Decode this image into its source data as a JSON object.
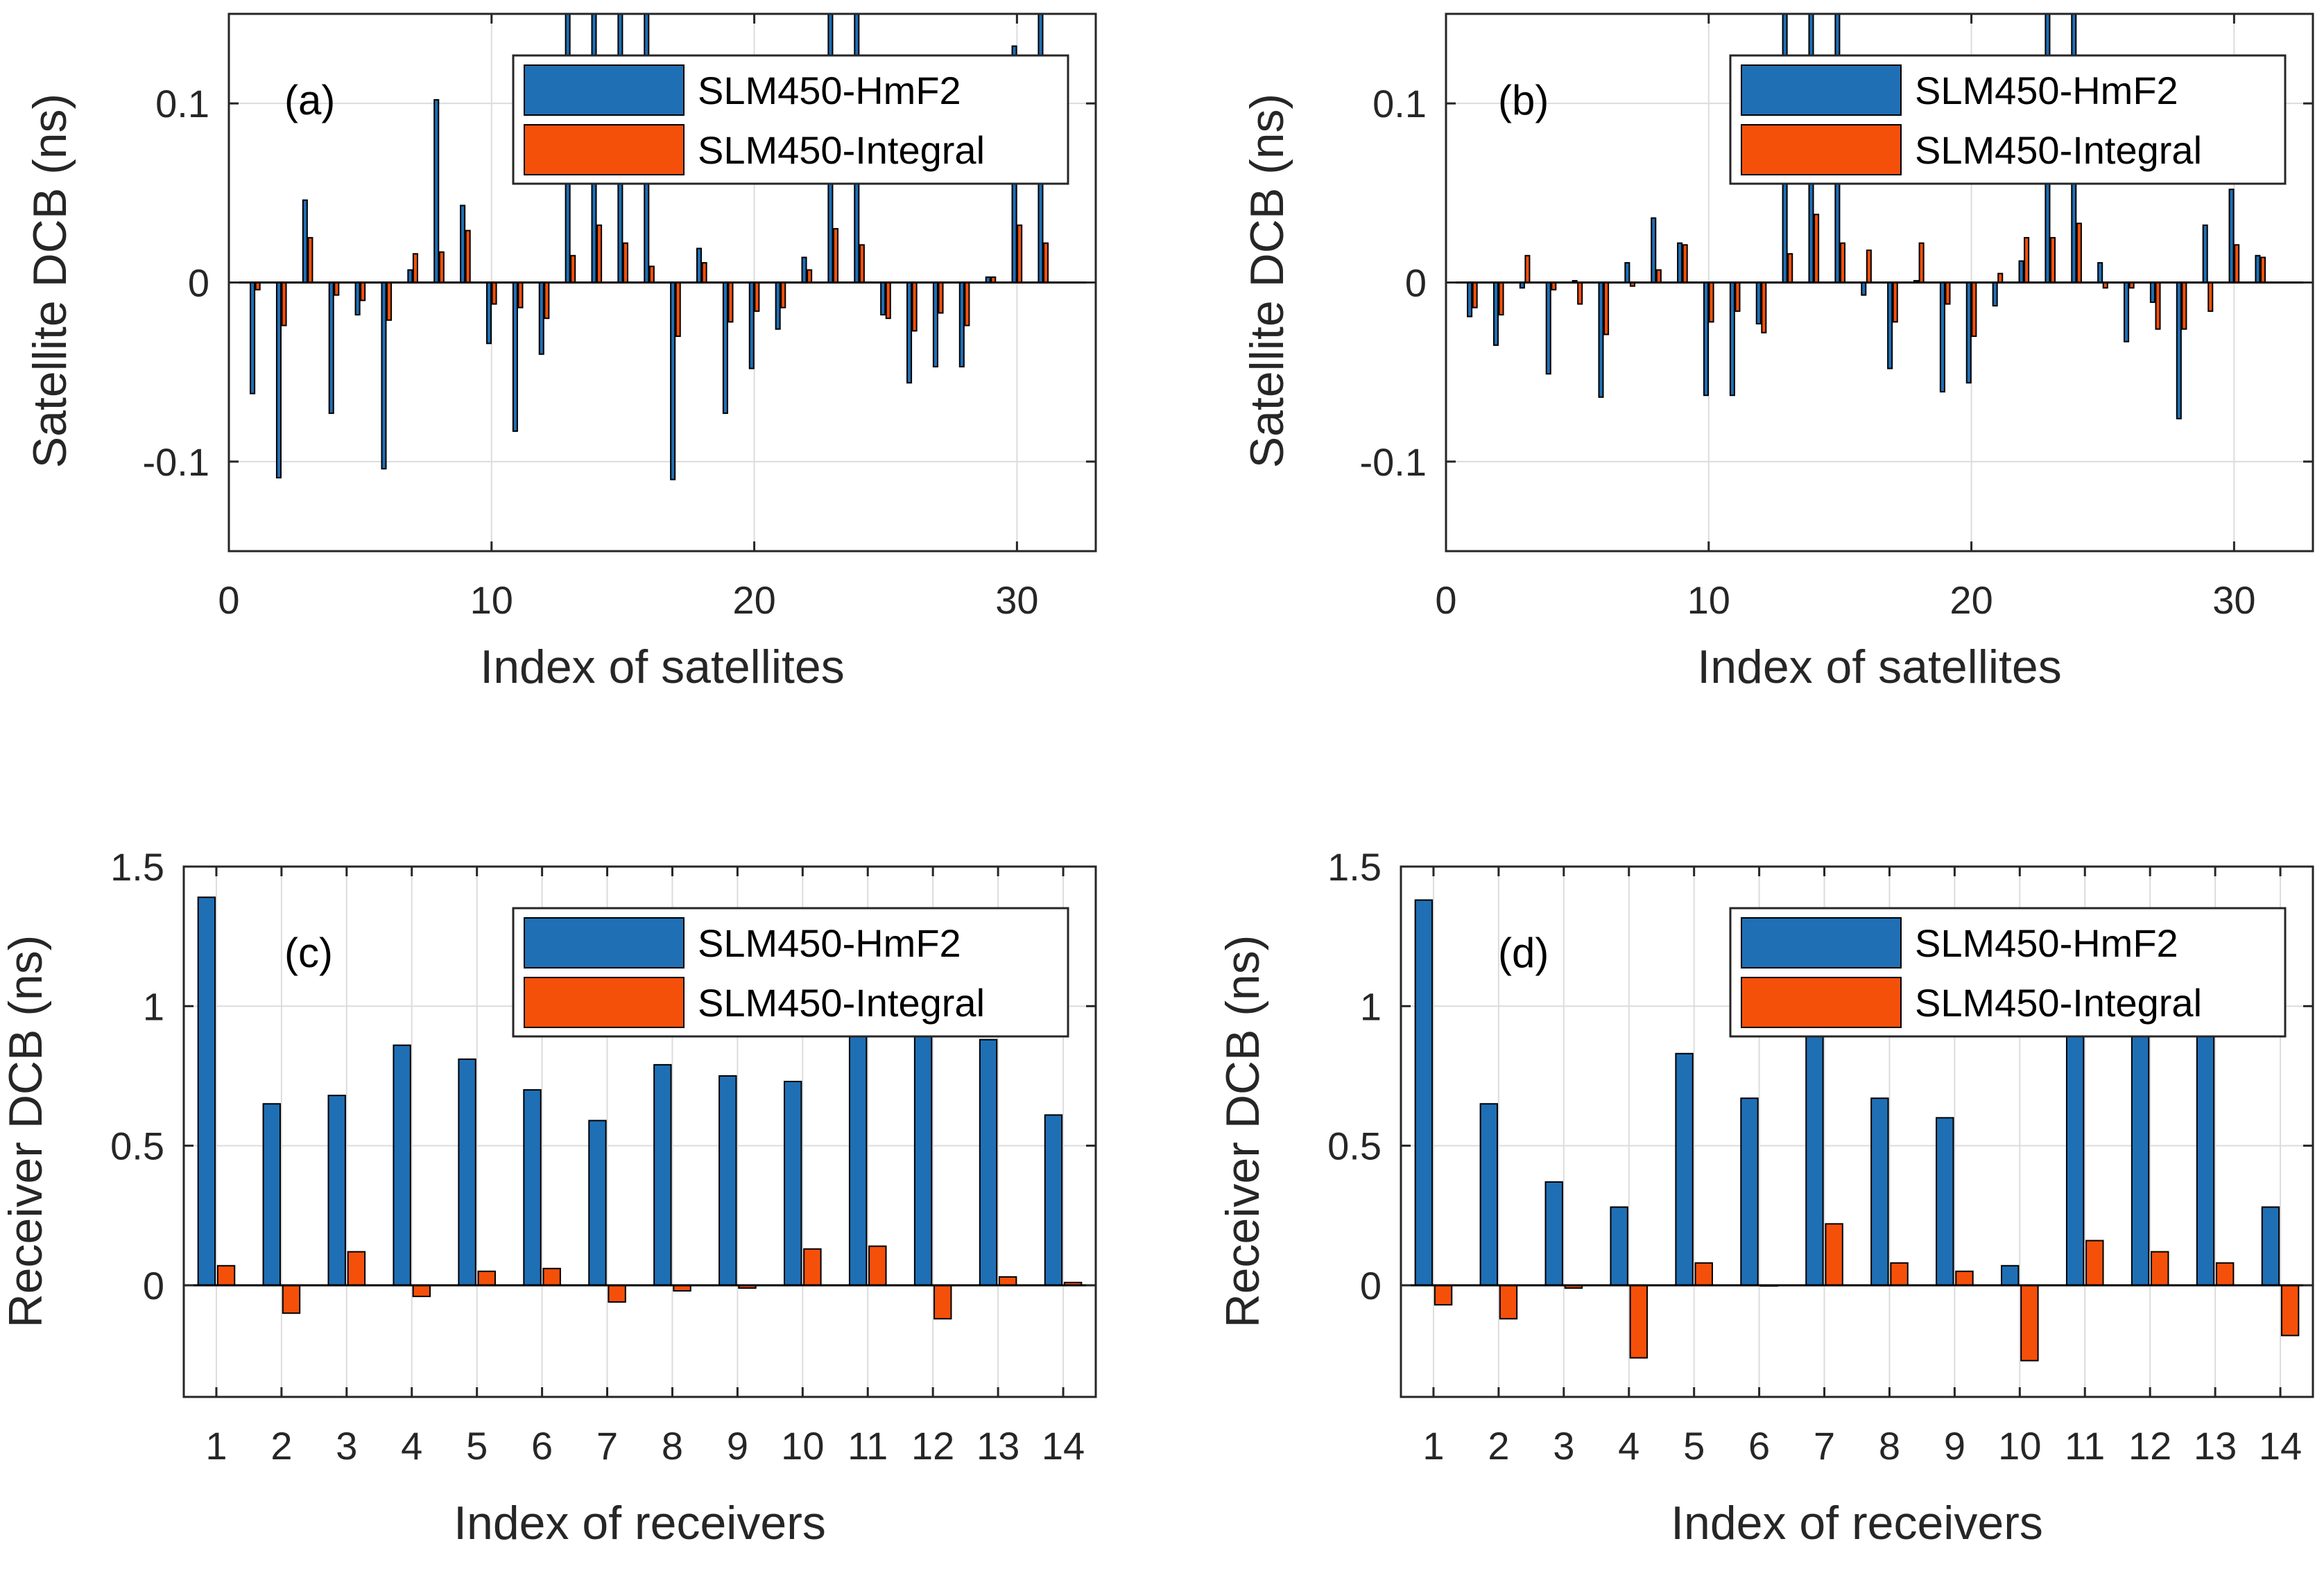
{
  "colors": {
    "hmf2": "#1f6fb5",
    "integral": "#f5500a",
    "axis": "#262626",
    "grid": "#dcdcdc",
    "baseline": "#000000"
  },
  "chart_data": [
    {
      "type": "bar",
      "panel_label": "(a)",
      "xlabel": "Index of satellites",
      "ylabel": "Satellite DCB (ns)",
      "xlim": [
        0,
        33
      ],
      "ylim": [
        -0.15,
        0.15
      ],
      "xticks": [
        0,
        10,
        20,
        30
      ],
      "xtick_labels": [
        "0",
        "10",
        "20",
        "30"
      ],
      "yticks": [
        -0.1,
        0,
        0.1
      ],
      "ytick_labels": [
        "-0.1",
        "0",
        "0.1"
      ],
      "legend": [
        "SLM450-HmF2",
        "SLM450-Integral"
      ],
      "categories": [
        1,
        2,
        3,
        4,
        5,
        6,
        7,
        8,
        9,
        10,
        11,
        12,
        13,
        14,
        15,
        16,
        17,
        18,
        19,
        20,
        21,
        22,
        23,
        24,
        25,
        26,
        27,
        28,
        29,
        30,
        31
      ],
      "series": [
        {
          "name": "SLM450-HmF2",
          "values": [
            -0.062,
            -0.109,
            0.046,
            -0.073,
            -0.018,
            -0.104,
            0.007,
            0.102,
            0.043,
            -0.034,
            -0.083,
            -0.04,
            0.15,
            0.15,
            0.15,
            0.15,
            -0.11,
            0.019,
            -0.073,
            -0.048,
            -0.026,
            0.014,
            0.15,
            0.15,
            -0.018,
            -0.056,
            -0.047,
            -0.047,
            0.003,
            0.132,
            0.15
          ]
        },
        {
          "name": "SLM450-Integral",
          "values": [
            -0.004,
            -0.024,
            0.025,
            -0.007,
            -0.01,
            -0.021,
            0.016,
            0.017,
            0.029,
            -0.012,
            -0.014,
            -0.02,
            0.015,
            0.032,
            0.022,
            0.009,
            -0.03,
            0.011,
            -0.022,
            -0.016,
            -0.014,
            0.007,
            0.03,
            0.021,
            -0.02,
            -0.027,
            -0.017,
            -0.024,
            0.003,
            0.032,
            0.022
          ]
        }
      ]
    },
    {
      "type": "bar",
      "panel_label": "(b)",
      "xlabel": "Index of satellites",
      "ylabel": "Satellite DCB (ns)",
      "xlim": [
        0,
        33
      ],
      "ylim": [
        -0.15,
        0.15
      ],
      "xticks": [
        0,
        10,
        20,
        30
      ],
      "xtick_labels": [
        "0",
        "10",
        "20",
        "30"
      ],
      "yticks": [
        -0.1,
        0,
        0.1
      ],
      "ytick_labels": [
        "-0.1",
        "0",
        "0.1"
      ],
      "legend": [
        "SLM450-HmF2",
        "SLM450-Integral"
      ],
      "categories": [
        1,
        2,
        3,
        4,
        5,
        6,
        7,
        8,
        9,
        10,
        11,
        12,
        13,
        14,
        15,
        16,
        17,
        18,
        19,
        20,
        21,
        22,
        23,
        24,
        25,
        26,
        27,
        28,
        29,
        30,
        31
      ],
      "series": [
        {
          "name": "SLM450-HmF2",
          "values": [
            -0.019,
            -0.035,
            -0.003,
            -0.051,
            0.001,
            -0.064,
            0.011,
            0.036,
            0.022,
            -0.063,
            -0.063,
            -0.023,
            0.15,
            0.15,
            0.15,
            -0.007,
            -0.048,
            0.001,
            -0.061,
            -0.056,
            -0.013,
            0.012,
            0.15,
            0.15,
            0.011,
            -0.033,
            -0.011,
            -0.076,
            0.032,
            0.052,
            0.015
          ]
        },
        {
          "name": "SLM450-Integral",
          "values": [
            -0.014,
            -0.018,
            0.015,
            -0.004,
            -0.012,
            -0.029,
            -0.002,
            0.007,
            0.021,
            -0.022,
            -0.016,
            -0.028,
            0.016,
            0.038,
            0.022,
            0.018,
            -0.022,
            0.022,
            -0.012,
            -0.03,
            0.005,
            0.025,
            0.025,
            0.033,
            -0.003,
            -0.003,
            -0.026,
            -0.026,
            -0.016,
            0.021,
            0.014
          ]
        }
      ]
    },
    {
      "type": "bar",
      "panel_label": "(c)",
      "xlabel": "Index of receivers",
      "ylabel": "Receiver DCB (ns)",
      "xlim": [
        0.5,
        14.5
      ],
      "ylim": [
        -0.4,
        1.5
      ],
      "xticks": [
        1,
        2,
        3,
        4,
        5,
        6,
        7,
        8,
        9,
        10,
        11,
        12,
        13,
        14
      ],
      "xtick_labels": [
        "1",
        "2",
        "3",
        "4",
        "5",
        "6",
        "7",
        "8",
        "9",
        "10",
        "11",
        "12",
        "13",
        "14"
      ],
      "yticks": [
        0,
        0.5,
        1,
        1.5
      ],
      "ytick_labels": [
        "0",
        "0.5",
        "1",
        "1.5"
      ],
      "legend": [
        "SLM450-HmF2",
        "SLM450-Integral"
      ],
      "categories": [
        1,
        2,
        3,
        4,
        5,
        6,
        7,
        8,
        9,
        10,
        11,
        12,
        13,
        14
      ],
      "series": [
        {
          "name": "SLM450-HmF2",
          "values": [
            1.39,
            0.65,
            0.68,
            0.86,
            0.81,
            0.7,
            0.59,
            0.79,
            0.75,
            0.73,
            0.97,
            0.9,
            0.88,
            0.61
          ]
        },
        {
          "name": "SLM450-Integral",
          "values": [
            0.07,
            -0.1,
            0.12,
            -0.04,
            0.05,
            0.06,
            -0.06,
            -0.02,
            -0.01,
            0.13,
            0.14,
            -0.12,
            0.03,
            0.01
          ]
        }
      ]
    },
    {
      "type": "bar",
      "panel_label": "(d)",
      "xlabel": "Index of receivers",
      "ylabel": "Receiver DCB (ns)",
      "xlim": [
        0.5,
        14.5
      ],
      "ylim": [
        -0.4,
        1.5
      ],
      "xticks": [
        1,
        2,
        3,
        4,
        5,
        6,
        7,
        8,
        9,
        10,
        11,
        12,
        13,
        14
      ],
      "xtick_labels": [
        "1",
        "2",
        "3",
        "4",
        "5",
        "6",
        "7",
        "8",
        "9",
        "10",
        "11",
        "12",
        "13",
        "14"
      ],
      "yticks": [
        0,
        0.5,
        1,
        1.5
      ],
      "ytick_labels": [
        "0",
        "0.5",
        "1",
        "1.5"
      ],
      "legend": [
        "SLM450-HmF2",
        "SLM450-Integral"
      ],
      "categories": [
        1,
        2,
        3,
        4,
        5,
        6,
        7,
        8,
        9,
        10,
        11,
        12,
        13,
        14
      ],
      "series": [
        {
          "name": "SLM450-HmF2",
          "values": [
            1.38,
            0.65,
            0.37,
            0.28,
            0.83,
            0.67,
            0.97,
            0.67,
            0.6,
            0.07,
            0.97,
            0.97,
            0.97,
            0.28
          ]
        },
        {
          "name": "SLM450-Integral",
          "values": [
            -0.07,
            -0.12,
            -0.01,
            -0.26,
            0.08,
            0.0,
            0.22,
            0.08,
            0.05,
            -0.27,
            0.16,
            0.12,
            0.08,
            -0.18
          ]
        }
      ]
    }
  ]
}
